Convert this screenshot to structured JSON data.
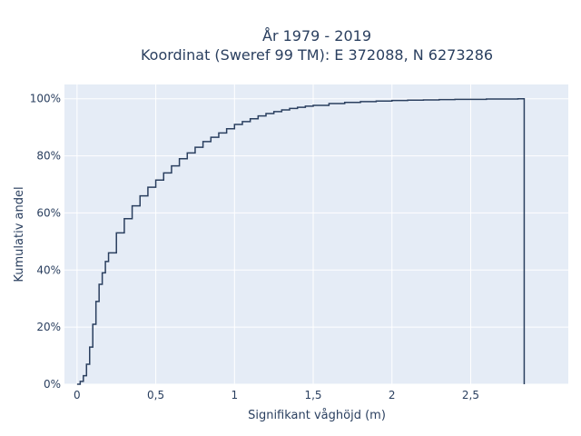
{
  "chart_data": {
    "type": "line",
    "line_shape": "step",
    "title_line1": "År 1979 - 2019",
    "title_line2": "Koordinat (Sweref 99 TM): E 372088, N 6273286",
    "xlabel": "Signifikant våghöjd (m)",
    "ylabel": "Kumulativ andel",
    "xlim": [
      -0.08,
      3.12
    ],
    "ylim": [
      0,
      1.05
    ],
    "x_ticks": [
      0,
      0.5,
      1,
      1.5,
      2,
      2.5
    ],
    "x_tick_labels": [
      "0",
      "0,5",
      "1",
      "1,5",
      "2",
      "2,5"
    ],
    "y_ticks": [
      0,
      0.2,
      0.4,
      0.6,
      0.8,
      1.0
    ],
    "y_tick_labels": [
      "0%",
      "20%",
      "40%",
      "60%",
      "80%",
      "100%"
    ],
    "grid": true,
    "colors": {
      "background": "#e5ecf6",
      "grid": "#ffffff",
      "line": "#2a3f5f"
    },
    "series": [
      {
        "x": [
          0,
          0.02,
          0.04,
          0.06,
          0.08,
          0.1,
          0.12,
          0.14,
          0.16,
          0.18,
          0.2,
          0.25,
          0.3,
          0.35,
          0.4,
          0.45,
          0.5,
          0.55,
          0.6,
          0.65,
          0.7,
          0.75,
          0.8,
          0.85,
          0.9,
          0.95,
          1.0,
          1.05,
          1.1,
          1.15,
          1.2,
          1.25,
          1.3,
          1.35,
          1.4,
          1.45,
          1.5,
          1.6,
          1.7,
          1.8,
          1.9,
          2.0,
          2.1,
          2.2,
          2.3,
          2.4,
          2.5,
          2.6,
          2.7,
          2.8,
          2.84
        ],
        "y": [
          0,
          0.01,
          0.03,
          0.07,
          0.13,
          0.21,
          0.29,
          0.35,
          0.39,
          0.43,
          0.46,
          0.53,
          0.58,
          0.625,
          0.66,
          0.69,
          0.715,
          0.74,
          0.765,
          0.79,
          0.81,
          0.83,
          0.85,
          0.865,
          0.88,
          0.895,
          0.91,
          0.92,
          0.93,
          0.94,
          0.948,
          0.955,
          0.961,
          0.966,
          0.97,
          0.974,
          0.977,
          0.983,
          0.987,
          0.99,
          0.992,
          0.994,
          0.995,
          0.996,
          0.997,
          0.998,
          0.998,
          0.999,
          0.999,
          1.0,
          1.0
        ]
      }
    ]
  }
}
